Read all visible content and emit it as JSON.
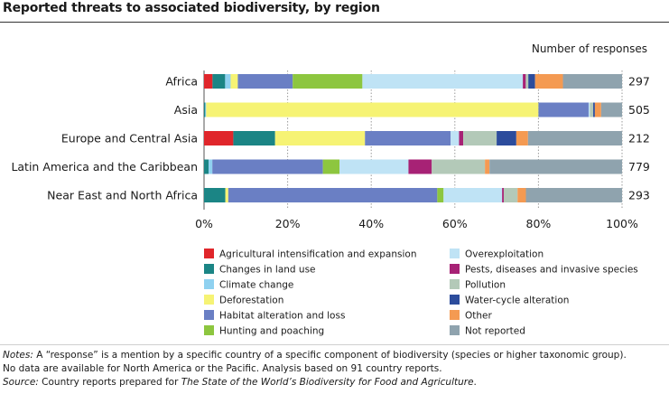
{
  "title": "Reported threats to associated biodiversity, by region",
  "chart_data": {
    "type": "bar",
    "orientation": "horizontal",
    "stacked": true,
    "normalized": true,
    "responses_header": "Number of responses",
    "categories": [
      "Africa",
      "Asia",
      "Europe and Central Asia",
      "Latin America and the Caribbean",
      "Near East and North Africa"
    ],
    "responses": [
      "297",
      "505",
      "212",
      "779",
      "293"
    ],
    "xlim": [
      0,
      100
    ],
    "x_ticks": [
      "0%",
      "20%",
      "40%",
      "60%",
      "80%",
      "100%"
    ],
    "legend_position": "bottom",
    "series": [
      {
        "name": "Agricultural intensification and expansion",
        "color": "#e0262b",
        "values": [
          2,
          0,
          7,
          0,
          0
        ]
      },
      {
        "name": "Changes in land use",
        "color": "#1b8585",
        "values": [
          3,
          0.3,
          10,
          1.1,
          5.1
        ]
      },
      {
        "name": "Climate change",
        "color": "#8fd1f0",
        "values": [
          1.3,
          0.2,
          0,
          0.9,
          0
        ]
      },
      {
        "name": "Deforestation",
        "color": "#f6f374",
        "values": [
          1.7,
          79.5,
          21.5,
          0,
          0.7
        ]
      },
      {
        "name": "Habitat alteration and loss",
        "color": "#6a7fc4",
        "values": [
          13,
          12,
          20.5,
          26.6,
          50
        ]
      },
      {
        "name": "Hunting and poaching",
        "color": "#8dc63f",
        "values": [
          16.5,
          0,
          0,
          4,
          1.5
        ]
      },
      {
        "name": "Overexploitation",
        "color": "#bfe3f5",
        "values": [
          38,
          0.3,
          2,
          16.6,
          14
        ]
      },
      {
        "name": "Pests, diseases and invasive species",
        "color": "#a72275",
        "values": [
          0.7,
          0,
          1,
          5.6,
          0.4
        ]
      },
      {
        "name": "Pollution",
        "color": "#b3c9b8",
        "values": [
          0.6,
          0.8,
          8,
          12.8,
          3.3
        ]
      },
      {
        "name": "Water-cycle alteration",
        "color": "#2c4c9c",
        "values": [
          1.6,
          0.4,
          4.7,
          0,
          0
        ]
      },
      {
        "name": "Other",
        "color": "#f49a52",
        "values": [
          6.6,
          1.5,
          2.8,
          1.1,
          2
        ]
      },
      {
        "name": "Not reported",
        "color": "#8fa3ae",
        "values": [
          14,
          5,
          22.5,
          31.9,
          23
        ]
      }
    ]
  },
  "notes": {
    "line1_lead": "Notes:",
    "line1_text": " A “response” is a mention by a specific country of a specific component of biodiversity (species or higher taxonomic group).",
    "line2": "No data are available for North America or the Pacific. Analysis based on 91 country reports.",
    "line3_lead": "Source:",
    "line3_text": " Country reports prepared for ",
    "line3_title": "The State of the World’s Biodiversity for Food and Agriculture",
    "line3_end": "."
  }
}
